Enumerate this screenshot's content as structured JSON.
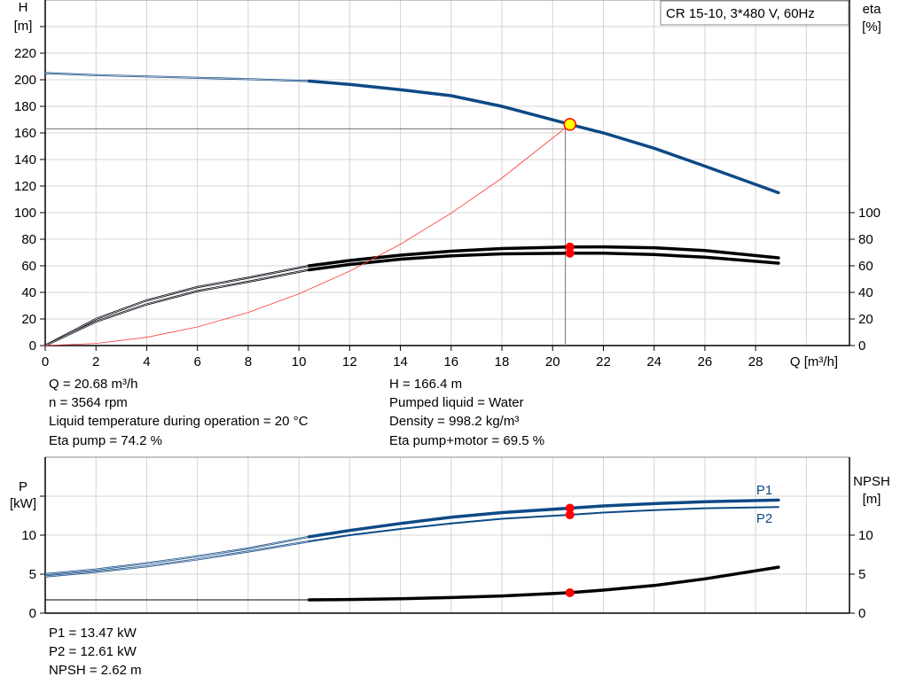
{
  "chart_data": [
    {
      "type": "line",
      "title": "CR 15-10, 3*480 V, 60Hz",
      "xlabel": "Q [m³/h]",
      "ylabel": "H\n[m]",
      "ylabel_lines": [
        "H",
        "[m]"
      ],
      "y2label_lines": [
        "eta",
        "[%]"
      ],
      "xlim": [
        0,
        31.7
      ],
      "ylim": [
        0,
        260
      ],
      "y2lim": [
        0,
        260
      ],
      "grid": true,
      "x_ticks": [
        0,
        2,
        4,
        6,
        8,
        10,
        12,
        14,
        16,
        18,
        20,
        22,
        24,
        26,
        28
      ],
      "y_ticks": [
        0,
        20,
        40,
        60,
        80,
        100,
        120,
        140,
        160,
        180,
        200,
        220
      ],
      "y2_ticks": [
        0,
        20,
        40,
        60,
        80,
        100
      ],
      "series": [
        {
          "key": "H",
          "color": "#0d4a85",
          "axis": "left",
          "thin_until": 10.4,
          "x": [
            0,
            2,
            4,
            6,
            8,
            10.4,
            12,
            14,
            16,
            18,
            20.68,
            22,
            24,
            26,
            28.9
          ],
          "y": [
            205,
            203.5,
            202.5,
            201.5,
            200.5,
            199,
            196.5,
            192.5,
            188,
            180,
            166.4,
            160,
            148.5,
            135,
            115
          ]
        },
        {
          "key": "eta_pump",
          "color": "#000000",
          "axis": "right",
          "thin_until": 10.4,
          "x": [
            0,
            2,
            4,
            6,
            8,
            10.4,
            12,
            14,
            16,
            18,
            20.68,
            22,
            24,
            26,
            28.9
          ],
          "y": [
            0,
            20,
            34,
            44,
            51,
            60,
            64,
            68,
            71,
            73,
            74.2,
            74.3,
            73.6,
            71.5,
            66
          ]
        },
        {
          "key": "eta_pump_motor",
          "color": "#000000",
          "axis": "right",
          "thin_until": 10.4,
          "x": [
            0,
            2,
            4,
            6,
            8,
            10.4,
            12,
            14,
            16,
            18,
            20.68,
            22,
            24,
            26,
            28.9
          ],
          "y": [
            0,
            18,
            31,
            41,
            48,
            57,
            61,
            65,
            67.5,
            69,
            69.5,
            69.5,
            68.5,
            66.5,
            62
          ]
        },
        {
          "key": "system",
          "color": "#ff3b3b",
          "axis": "left",
          "thin_until": 99,
          "x": [
            0,
            2,
            4,
            6,
            8,
            10,
            12,
            14,
            16,
            18,
            20.68
          ],
          "y": [
            0,
            1.6,
            6.2,
            14,
            24.9,
            38.9,
            56,
            76.3,
            99.6,
            126,
            166.4
          ]
        }
      ],
      "duty_point": {
        "Q": 20.68,
        "H": 166.4,
        "color": "#ffff00",
        "edge": "#ff0000"
      },
      "required_point": {
        "Q": 20.5,
        "H": 163
      },
      "eta_markers": [
        74.2,
        69.5
      ]
    },
    {
      "type": "line",
      "ylabel_lines": [
        "P",
        "[kW]"
      ],
      "y2label_lines": [
        "NPSH",
        "[m]"
      ],
      "xlim": [
        0,
        31.7
      ],
      "ylim": [
        0,
        20
      ],
      "y2lim": [
        0,
        20
      ],
      "grid": true,
      "y_ticks": [
        0,
        5,
        10
      ],
      "y2_ticks": [
        0,
        5,
        10
      ],
      "series": [
        {
          "key": "P1",
          "name": "P1",
          "color": "#0d4a85",
          "axis": "left",
          "thin_until": 10.4,
          "width": 3.5,
          "x": [
            0,
            2,
            4,
            6,
            8,
            10.4,
            12,
            14,
            16,
            18,
            20.68,
            22,
            24,
            26,
            28.9
          ],
          "y": [
            5.0,
            5.6,
            6.4,
            7.3,
            8.3,
            9.8,
            10.6,
            11.5,
            12.3,
            12.9,
            13.47,
            13.75,
            14.05,
            14.3,
            14.5
          ]
        },
        {
          "key": "P2",
          "name": "P2",
          "color": "#0d4a85",
          "axis": "left",
          "thin_until": 10.4,
          "width": 2,
          "x": [
            0,
            2,
            4,
            6,
            8,
            10.4,
            12,
            14,
            16,
            18,
            20.68,
            22,
            24,
            26,
            28.9
          ],
          "y": [
            4.7,
            5.3,
            6.0,
            6.9,
            7.9,
            9.2,
            10.0,
            10.8,
            11.5,
            12.1,
            12.61,
            12.9,
            13.2,
            13.45,
            13.6
          ]
        },
        {
          "key": "NPSH",
          "color": "#000000",
          "axis": "right",
          "thin_until": 10.4,
          "width": 3.5,
          "x": [
            0,
            10.4,
            12,
            14,
            16,
            18,
            20.68,
            22,
            24,
            26,
            28.9
          ],
          "y": [
            1.7,
            1.7,
            1.75,
            1.85,
            2.0,
            2.2,
            2.62,
            2.95,
            3.55,
            4.4,
            5.9
          ]
        }
      ],
      "markers": {
        "Q": 20.68,
        "P1": 13.47,
        "P2": 12.61,
        "NPSH": 2.62
      }
    }
  ],
  "info_top": {
    "left": [
      "Q = 20.68 m³/h",
      "n = 3564 rpm",
      "Liquid temperature during operation = 20 °C",
      "Eta pump = 74.2 %"
    ],
    "right": [
      "H = 166.4 m",
      "Pumped liquid = Water",
      "Density = 998.2 kg/m³",
      "Eta pump+motor = 69.5 %"
    ]
  },
  "info_bottom": [
    "P1 = 13.47 kW",
    "P2 = 12.61 kW",
    "NPSH = 2.62 m"
  ]
}
